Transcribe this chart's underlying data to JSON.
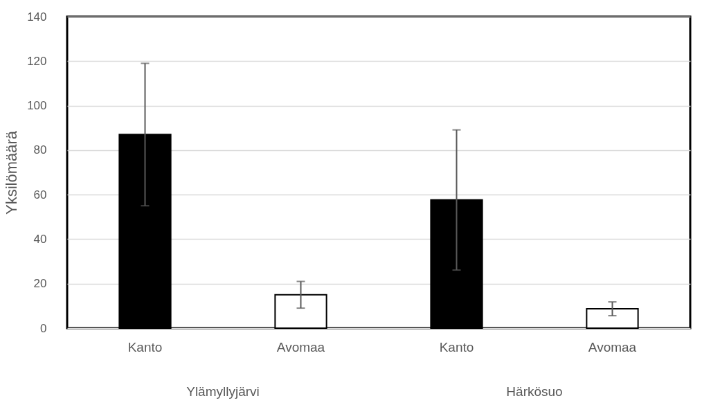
{
  "chart_data": {
    "type": "bar",
    "ylabel": "Yksilömäärä",
    "categories": [
      "Kanto",
      "Avomaa",
      "Kanto",
      "Avomaa"
    ],
    "values": [
      87,
      15,
      57.6,
      8.7
    ],
    "errors": [
      32,
      6,
      31.5,
      3.1
    ],
    "colors": [
      "#000000",
      "#ffffff",
      "#000000",
      "#ffffff"
    ],
    "ylim": [
      0,
      140
    ],
    "yticks": [
      0,
      20,
      40,
      60,
      80,
      100,
      120,
      140
    ],
    "grid": "y",
    "annotations": [
      "Ylämyllyjärvi",
      "Härkösuo"
    ]
  }
}
